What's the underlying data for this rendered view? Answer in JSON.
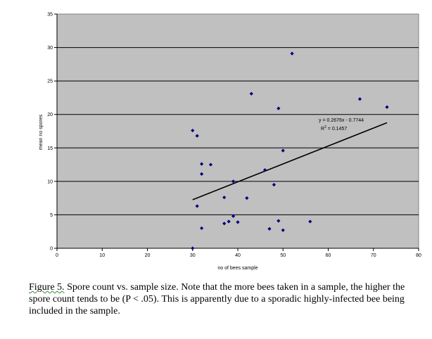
{
  "chart_data": {
    "type": "scatter",
    "xlabel": "no of bees sample",
    "ylabel": "mean no spores",
    "xlim": [
      0,
      80
    ],
    "ylim": [
      0,
      35
    ],
    "x_ticks": [
      0,
      10,
      20,
      30,
      40,
      50,
      60,
      70,
      80
    ],
    "y_ticks": [
      0,
      5,
      10,
      15,
      20,
      25,
      30,
      35
    ],
    "grid": "horizontal",
    "background_color": "#c0c0c0",
    "marker_color": "#000080",
    "points": [
      {
        "x": 30,
        "y": 0
      },
      {
        "x": 30,
        "y": 17.6
      },
      {
        "x": 31,
        "y": 16.8
      },
      {
        "x": 31,
        "y": 6.3
      },
      {
        "x": 32,
        "y": 12.6
      },
      {
        "x": 32,
        "y": 11.1
      },
      {
        "x": 32,
        "y": 3
      },
      {
        "x": 34,
        "y": 12.5
      },
      {
        "x": 37,
        "y": 7.6
      },
      {
        "x": 37,
        "y": 3.7
      },
      {
        "x": 38,
        "y": 4
      },
      {
        "x": 39,
        "y": 10
      },
      {
        "x": 39,
        "y": 4.8
      },
      {
        "x": 40,
        "y": 3.9
      },
      {
        "x": 42,
        "y": 7.5
      },
      {
        "x": 43,
        "y": 23.1
      },
      {
        "x": 46,
        "y": 11.7
      },
      {
        "x": 47,
        "y": 2.9
      },
      {
        "x": 48,
        "y": 9.5
      },
      {
        "x": 49,
        "y": 20.9
      },
      {
        "x": 49,
        "y": 4.1
      },
      {
        "x": 50,
        "y": 14.6
      },
      {
        "x": 50,
        "y": 2.7
      },
      {
        "x": 52,
        "y": 29.1
      },
      {
        "x": 56,
        "y": 4
      },
      {
        "x": 67,
        "y": 22.3
      },
      {
        "x": 73,
        "y": 21.1
      }
    ],
    "trendline": {
      "slope": 0.2676,
      "intercept": -0.7744,
      "x_range": [
        30,
        73
      ]
    },
    "annotations": {
      "equation": "y = 0.2676x - 0.7744",
      "r2_label": "R",
      "r2_sup": "2",
      "r2_value": " = 0.1457"
    }
  },
  "caption": {
    "figure_word": "Figure 5.",
    "text": "  Spore count vs. sample size.  Note that the more bees taken in a sample, the higher the spore count tends to be (P < .05).  This is apparently due to a sporadic highly-infected bee being included in the sample."
  }
}
